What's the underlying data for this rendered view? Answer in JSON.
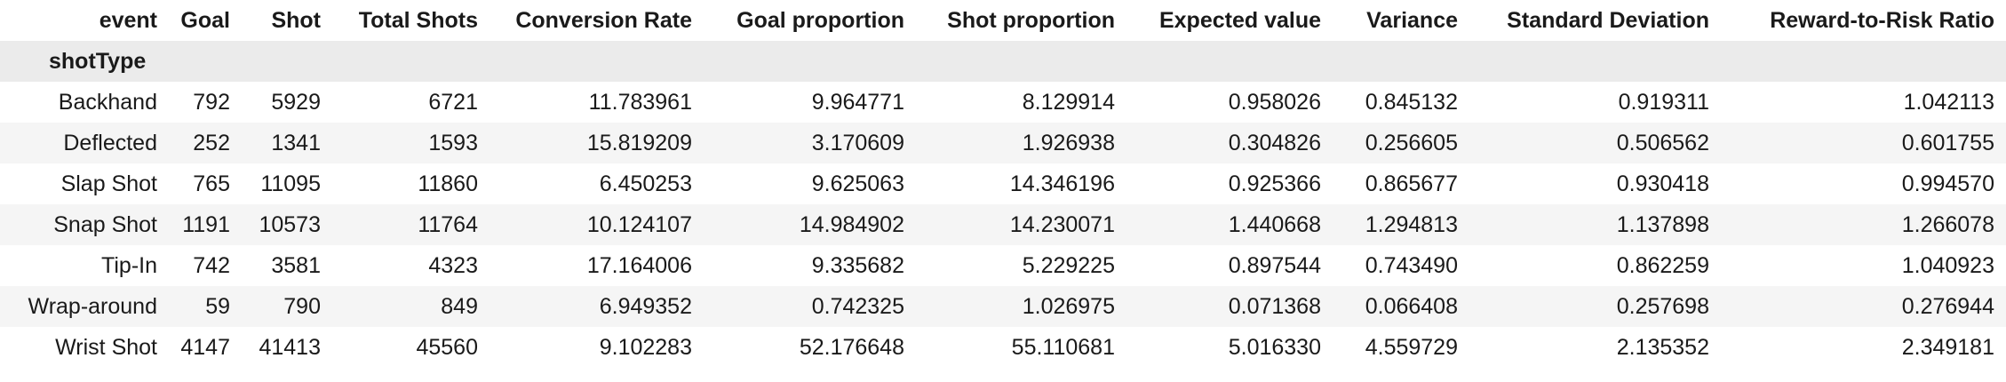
{
  "table": {
    "columns_name": "event",
    "index_name": "shotType",
    "columns": [
      "Goal",
      "Shot",
      "Total Shots",
      "Conversion Rate",
      "Goal proportion",
      "Shot proportion",
      "Expected value",
      "Variance",
      "Standard Deviation",
      "Reward-to-Risk Ratio"
    ],
    "rows": [
      {
        "index": "Backhand",
        "cells": [
          "792",
          "5929",
          "6721",
          "11.783961",
          "9.964771",
          "8.129914",
          "0.958026",
          "0.845132",
          "0.919311",
          "1.042113"
        ]
      },
      {
        "index": "Deflected",
        "cells": [
          "252",
          "1341",
          "1593",
          "15.819209",
          "3.170609",
          "1.926938",
          "0.304826",
          "0.256605",
          "0.506562",
          "0.601755"
        ]
      },
      {
        "index": "Slap Shot",
        "cells": [
          "765",
          "11095",
          "11860",
          "6.450253",
          "9.625063",
          "14.346196",
          "0.925366",
          "0.865677",
          "0.930418",
          "0.994570"
        ]
      },
      {
        "index": "Snap Shot",
        "cells": [
          "1191",
          "10573",
          "11764",
          "10.124107",
          "14.984902",
          "14.230071",
          "1.440668",
          "1.294813",
          "1.137898",
          "1.266078"
        ]
      },
      {
        "index": "Tip-In",
        "cells": [
          "742",
          "3581",
          "4323",
          "17.164006",
          "9.335682",
          "5.229225",
          "0.897544",
          "0.743490",
          "0.862259",
          "1.040923"
        ]
      },
      {
        "index": "Wrap-around",
        "cells": [
          "59",
          "790",
          "849",
          "6.949352",
          "0.742325",
          "1.026975",
          "0.071368",
          "0.066408",
          "0.257698",
          "0.276944"
        ]
      },
      {
        "index": "Wrist Shot",
        "cells": [
          "4147",
          "41413",
          "45560",
          "9.102283",
          "52.176648",
          "55.110681",
          "5.016330",
          "4.559729",
          "2.135352",
          "2.349181"
        ]
      }
    ]
  }
}
